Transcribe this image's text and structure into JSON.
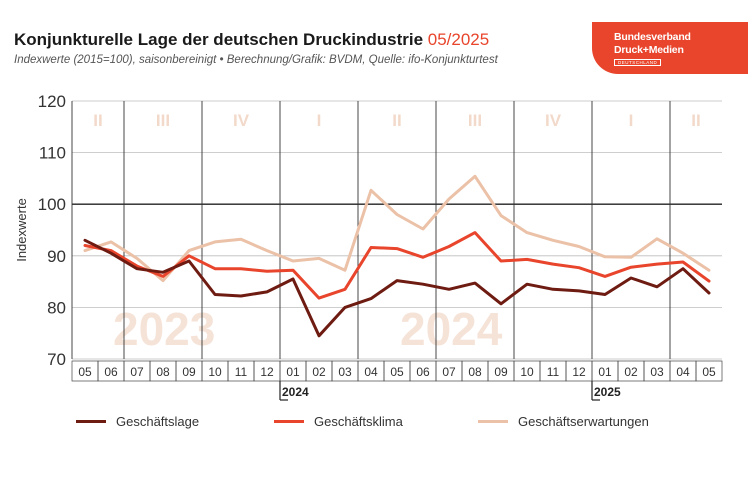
{
  "header": {
    "title": "Konjunkturelle Lage der deutschen Druckindustrie",
    "title_date": "05/2025",
    "subtitle": "Indexwerte (2015=100), saisonbereinigt • Berechnung/Grafik: BVDM, Quelle: ifo-Konjunkturtest"
  },
  "logo": {
    "line1": "Bundesverband",
    "line2": "Druck+Medien",
    "line3": "DEUTSCHLAND"
  },
  "colors": {
    "accent": "#e8452c",
    "lage": "#6e1b12",
    "klima": "#e8452c",
    "erwartungen": "#ebc1a7",
    "quarter_text": "#f2d9ca",
    "year_watermark": "#f6e3d8"
  },
  "chart_data": {
    "type": "line",
    "ylabel": "Indexwerte",
    "ylim": [
      70,
      120
    ],
    "yticks": [
      70,
      80,
      90,
      100,
      110,
      120
    ],
    "reference_line": 100,
    "categories": [
      "05",
      "06",
      "07",
      "08",
      "09",
      "10",
      "11",
      "12",
      "01",
      "02",
      "03",
      "04",
      "05",
      "06",
      "07",
      "08",
      "09",
      "10",
      "11",
      "12",
      "01",
      "02",
      "03",
      "04",
      "05"
    ],
    "year_labels": [
      {
        "label": "2024",
        "start_index": 8
      },
      {
        "label": "2025",
        "start_index": 20
      }
    ],
    "quarter_labels": [
      "II",
      "III",
      "IV",
      "I",
      "II",
      "III",
      "IV",
      "I",
      "II"
    ],
    "watermark_years": [
      "2023",
      "2024"
    ],
    "grid": true,
    "legend_position": "bottom",
    "series": [
      {
        "name": "Geschäftslage",
        "color_key": "lage",
        "values": [
          93.0,
          90.5,
          87.5,
          86.8,
          89.0,
          82.5,
          82.2,
          83.0,
          85.5,
          74.5,
          80.0,
          81.7,
          85.2,
          84.5,
          83.5,
          84.7,
          80.7,
          84.5,
          83.5,
          83.2,
          82.5,
          85.7,
          84.0,
          87.5,
          82.8
        ]
      },
      {
        "name": "Geschäftsklima",
        "color_key": "klima",
        "values": [
          92.0,
          91.0,
          88.0,
          86.0,
          90.0,
          87.5,
          87.5,
          87.0,
          87.2,
          81.8,
          83.5,
          91.6,
          91.4,
          89.7,
          91.8,
          94.5,
          89.0,
          89.3,
          88.4,
          87.7,
          86.0,
          87.8,
          88.4,
          88.8,
          85.1
        ]
      },
      {
        "name": "Geschäftserwartungen",
        "color_key": "erwartungen",
        "values": [
          91.0,
          92.7,
          89.5,
          85.2,
          91.0,
          92.7,
          93.2,
          91.0,
          89.0,
          89.5,
          87.2,
          102.7,
          98.0,
          95.2,
          101.0,
          105.4,
          97.8,
          94.5,
          93.0,
          91.8,
          89.8,
          89.7,
          93.3,
          90.5,
          87.2
        ]
      }
    ]
  }
}
